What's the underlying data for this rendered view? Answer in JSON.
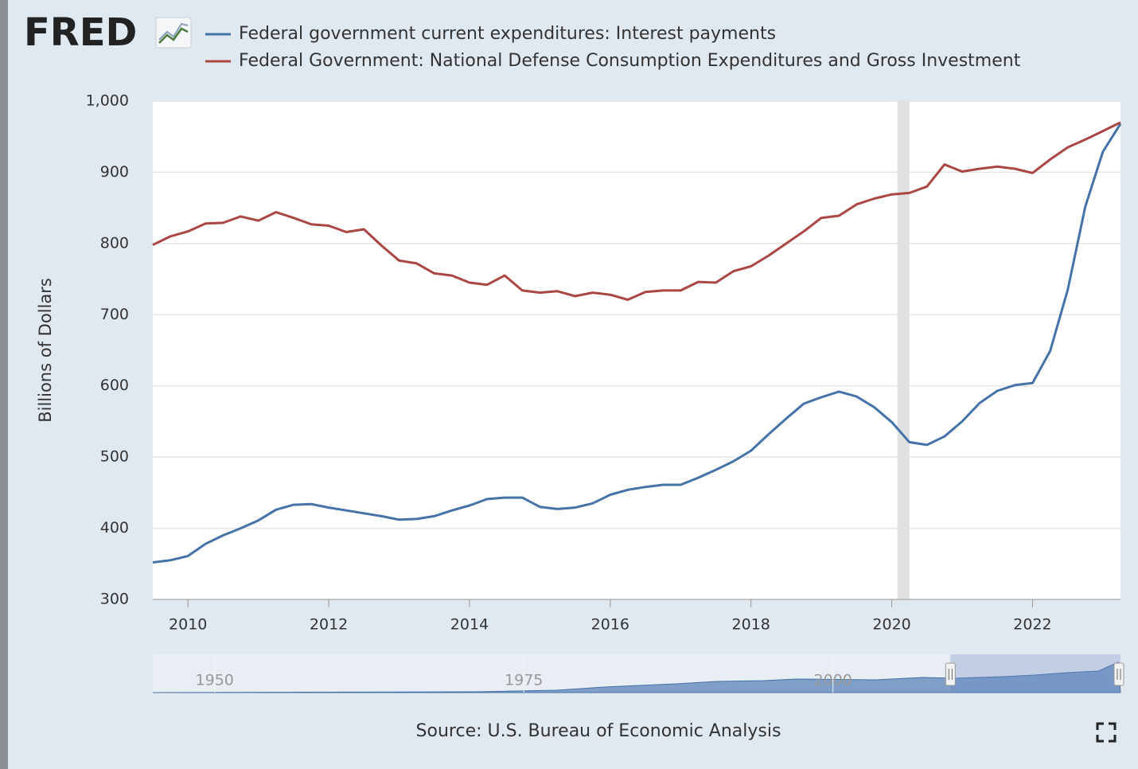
{
  "logo": "FRED",
  "chart_data": {
    "type": "line",
    "ylabel": "Billions of Dollars",
    "source": "Source: U.S. Bureau of Economic Analysis",
    "x": [
      2009.5,
      2009.75,
      2010,
      2010.25,
      2010.5,
      2010.75,
      2011,
      2011.25,
      2011.5,
      2011.75,
      2012,
      2012.25,
      2012.5,
      2012.75,
      2013,
      2013.25,
      2013.5,
      2013.75,
      2014,
      2014.25,
      2014.5,
      2014.75,
      2015,
      2015.25,
      2015.5,
      2015.75,
      2016,
      2016.25,
      2016.5,
      2016.75,
      2017,
      2017.25,
      2017.5,
      2017.75,
      2018,
      2018.25,
      2018.5,
      2018.75,
      2019,
      2019.25,
      2019.5,
      2019.75,
      2020,
      2020.25,
      2020.5,
      2020.75,
      2021,
      2021.25,
      2021.5,
      2021.75,
      2022,
      2022.25,
      2022.5,
      2022.75,
      2023,
      2023.25
    ],
    "series": [
      {
        "name": "Federal government current expenditures: Interest payments",
        "color": "#4572a7",
        "values": [
          352,
          355,
          361,
          378,
          390,
          400,
          411,
          426,
          433,
          434,
          429,
          425,
          421,
          417,
          412,
          413,
          417,
          425,
          432,
          441,
          443,
          443,
          430,
          427,
          429,
          435,
          447,
          454,
          458,
          461,
          461,
          471,
          482,
          494,
          509,
          532,
          554,
          575,
          584,
          592,
          585,
          570,
          549,
          521,
          517,
          529,
          550,
          576,
          593,
          601,
          604,
          649,
          735,
          852,
          929,
          968
        ]
      },
      {
        "name": "Federal Government: National Defense Consumption Expenditures and Gross Investment",
        "color": "#aa4643",
        "values": [
          798,
          810,
          817,
          828,
          829,
          838,
          832,
          844,
          836,
          827,
          825,
          816,
          820,
          797,
          776,
          772,
          758,
          755,
          745,
          742,
          755,
          734,
          731,
          733,
          726,
          731,
          728,
          721,
          732,
          734,
          734,
          746,
          745,
          761,
          768,
          783,
          800,
          817,
          836,
          839,
          855,
          863,
          869,
          871,
          880,
          911,
          901,
          905,
          908,
          905,
          899,
          918,
          935,
          946,
          958,
          970
        ]
      }
    ],
    "xlim": [
      2009.5,
      2023.25
    ],
    "xticks": [
      2010,
      2012,
      2014,
      2016,
      2018,
      2020,
      2022
    ],
    "ylim": [
      300,
      1000
    ],
    "yticks": [
      300,
      400,
      500,
      600,
      700,
      800,
      900,
      {
        "value": 1000,
        "label": "1,000"
      }
    ],
    "grid": true,
    "recessions": [
      {
        "start": 2020.08,
        "end": 2020.25
      }
    ],
    "navigator": {
      "xlim": [
        1945,
        2023.25
      ],
      "xticks": [
        1950,
        1975,
        2000
      ]
    }
  }
}
